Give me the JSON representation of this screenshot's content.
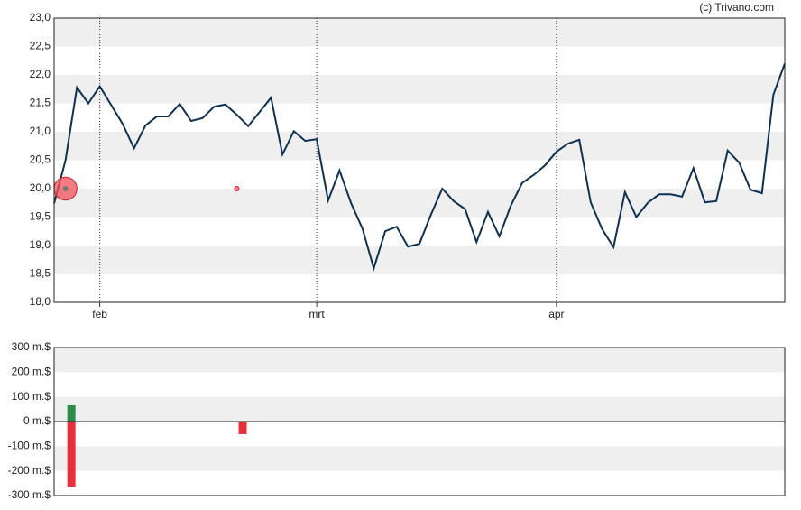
{
  "copyright": "(c) Trivano.com",
  "chart_data": [
    {
      "type": "line",
      "categories": [
        null,
        null,
        null,
        null,
        "feb",
        null,
        null,
        null,
        null,
        null,
        null,
        null,
        null,
        null,
        null,
        null,
        null,
        null,
        null,
        null,
        null,
        null,
        null,
        "mrt",
        null,
        null,
        null,
        null,
        null,
        null,
        null,
        null,
        null,
        null,
        null,
        null,
        null,
        null,
        null,
        null,
        null,
        null,
        null,
        null,
        "apr",
        null,
        null,
        null,
        null,
        null,
        null,
        null,
        null,
        null,
        null,
        null,
        null,
        null,
        null,
        null,
        null,
        null,
        null,
        null,
        null
      ],
      "series": [
        {
          "color": "#0e3152",
          "values": [
            19.74,
            20.5,
            21.78,
            21.5,
            21.8,
            21.47,
            21.14,
            20.71,
            21.11,
            21.27,
            21.27,
            21.49,
            21.19,
            21.24,
            21.44,
            21.48,
            21.3,
            21.1,
            21.35,
            21.6,
            20.6,
            21.01,
            20.84,
            20.87,
            19.79,
            20.32,
            19.75,
            19.3,
            18.6,
            19.25,
            19.33,
            18.98,
            19.03,
            19.54,
            20.0,
            19.78,
            19.64,
            19.06,
            19.59,
            19.16,
            19.7,
            20.1,
            20.24,
            20.41,
            20.65,
            20.79,
            20.86,
            19.76,
            19.29,
            18.97,
            19.94,
            19.5,
            19.75,
            19.9,
            19.9,
            19.86,
            20.36,
            19.76,
            19.78,
            20.67,
            20.46,
            19.98,
            19.92,
            21.65,
            22.2
          ]
        }
      ],
      "markers": {
        "color": "#f0505a",
        "values": [
          null,
          20,
          null,
          null,
          null,
          null,
          null,
          null,
          null,
          null,
          null,
          null,
          null,
          null,
          null,
          null,
          20,
          null,
          null,
          null,
          null,
          null,
          null,
          null,
          null,
          null,
          null,
          null,
          null,
          null,
          null,
          null,
          null,
          null,
          null,
          null,
          null,
          null,
          null,
          null,
          null,
          null,
          null,
          null,
          null,
          null,
          null,
          null,
          null,
          null,
          null,
          null,
          null,
          null,
          null,
          null,
          null,
          null,
          null,
          null,
          null,
          null,
          null,
          null,
          null
        ]
      },
      "ylim": [
        18,
        23
      ],
      "yticks": [
        {
          "value": 18,
          "label": "18,0"
        },
        {
          "value": 18.5,
          "label": "18,5"
        },
        {
          "value": 19,
          "label": "19,0"
        },
        {
          "value": 19.5,
          "label": "19,5"
        },
        {
          "value": 20,
          "label": "20,0"
        },
        {
          "value": 20.5,
          "label": "20,5"
        },
        {
          "value": 21,
          "label": "21,0"
        },
        {
          "value": 21.5,
          "label": "21,5"
        },
        {
          "value": 22,
          "label": "22,0"
        },
        {
          "value": 22.5,
          "label": "22,5"
        },
        {
          "value": 23,
          "label": "23,0"
        }
      ],
      "grid": true
    },
    {
      "type": "bar",
      "series": [
        {
          "color": "#2e8b4e",
          "values": [
            null,
            66,
            null,
            null,
            null,
            null,
            null,
            null,
            null,
            null,
            null,
            null,
            null,
            null,
            null,
            null,
            null,
            null,
            null,
            null,
            null,
            null,
            null,
            null,
            null,
            null,
            null,
            null,
            null,
            null,
            null,
            null,
            null,
            null,
            null,
            null,
            null,
            null,
            null,
            null,
            null,
            null,
            null,
            null,
            null,
            null,
            null,
            null,
            null,
            null,
            null,
            null,
            null,
            null,
            null,
            null,
            null,
            null,
            null,
            null,
            null,
            null,
            null,
            null,
            null
          ]
        },
        {
          "color": "#e8303a",
          "values": [
            null,
            -264,
            null,
            null,
            null,
            null,
            null,
            null,
            null,
            null,
            null,
            null,
            null,
            null,
            null,
            null,
            -51,
            null,
            null,
            null,
            null,
            null,
            null,
            null,
            null,
            null,
            null,
            null,
            null,
            null,
            null,
            null,
            null,
            null,
            null,
            null,
            null,
            null,
            null,
            null,
            null,
            null,
            null,
            null,
            null,
            null,
            null,
            null,
            null,
            null,
            null,
            null,
            null,
            null,
            null,
            null,
            null,
            null,
            null,
            null,
            null,
            null,
            null,
            null,
            null
          ]
        }
      ],
      "ylim": [
        -300,
        300
      ],
      "yticks": [
        {
          "value": -300,
          "label": "-300 m.$"
        },
        {
          "value": -200,
          "label": "-200 m.$"
        },
        {
          "value": -100,
          "label": "-100 m.$"
        },
        {
          "value": 0,
          "label": "0 m.$"
        },
        {
          "value": 100,
          "label": "100 m.$"
        },
        {
          "value": 200,
          "label": "200 m.$"
        },
        {
          "value": 300,
          "label": "300 m.$"
        }
      ],
      "grid": true
    }
  ]
}
